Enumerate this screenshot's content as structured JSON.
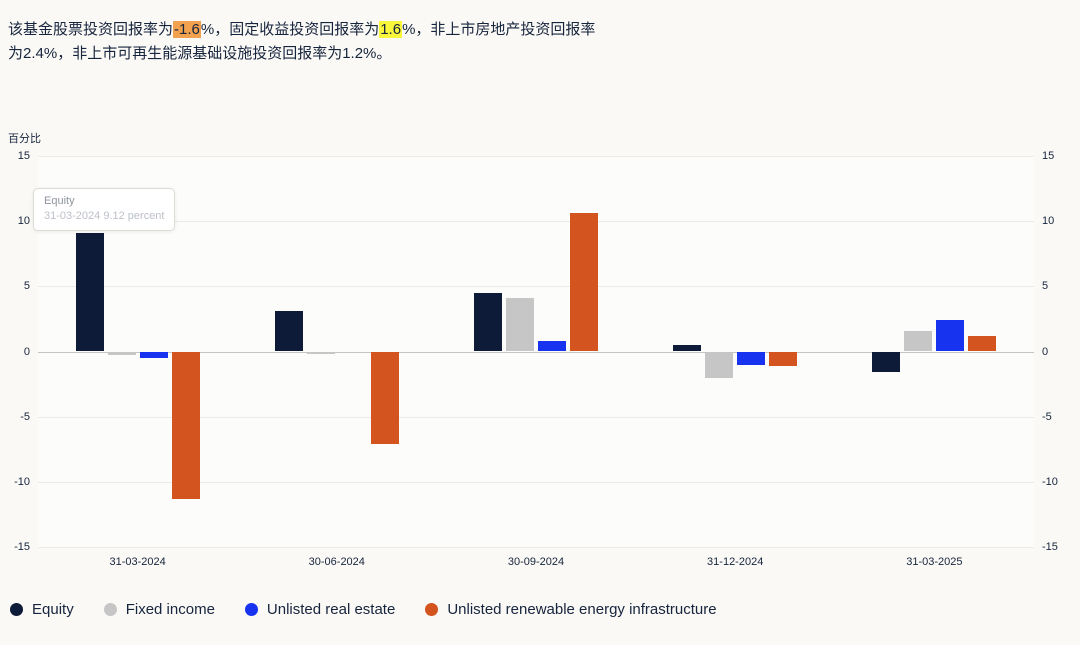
{
  "page": {
    "background": "#faf9f5"
  },
  "summary": {
    "segments": [
      {
        "text": "该基金股票投资回报率为",
        "highlight": ""
      },
      {
        "text": "-1.6",
        "highlight": "orange"
      },
      {
        "text": "%，固定收益投资回报率为",
        "highlight": ""
      },
      {
        "text": "1.6",
        "highlight": "yellow"
      },
      {
        "text": "%，非上市房地产投资回报率\n为2.4%，非上市可再生能源基础设施投资回报率为1.2%。",
        "highlight": ""
      }
    ],
    "highlight_colors": {
      "orange": "#f2a24e",
      "yellow": "#f8f73b"
    }
  },
  "chart_data": {
    "type": "bar",
    "title": "",
    "xlabel": "",
    "ylabel": "百分比",
    "ylim": [
      -15,
      15
    ],
    "ytick_step": 5,
    "yticks": [
      -15,
      -10,
      -5,
      0,
      5,
      10,
      15
    ],
    "grid": true,
    "legend_position": "bottom",
    "categories": [
      "31-03-2024",
      "30-06-2024",
      "30-09-2024",
      "31-12-2024",
      "31-03-2025"
    ],
    "series": [
      {
        "name": "Equity",
        "color": "#0e1b38",
        "values": [
          9.12,
          3.1,
          4.5,
          0.5,
          -1.6
        ]
      },
      {
        "name": "Fixed income",
        "color": "#c6c6c6",
        "values": [
          -0.3,
          -0.2,
          4.1,
          -2.0,
          1.6
        ]
      },
      {
        "name": "Unlisted real estate",
        "color": "#1733f0",
        "values": [
          -0.5,
          0.0,
          0.8,
          -1.0,
          2.4
        ]
      },
      {
        "name": "Unlisted renewable energy infrastructure",
        "color": "#d3541f",
        "values": [
          -11.3,
          -7.1,
          10.6,
          -1.1,
          1.2
        ]
      }
    ]
  },
  "tooltip": {
    "series": "Equity",
    "line2": "31-03-2024  9.12 percent"
  }
}
